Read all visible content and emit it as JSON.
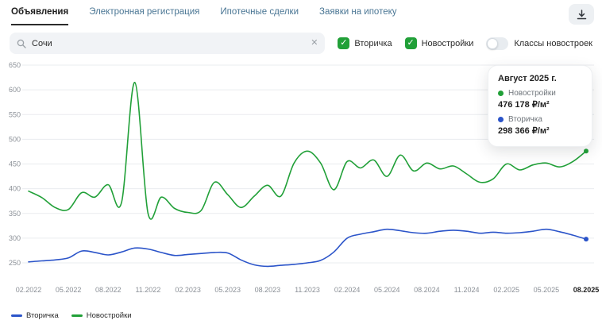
{
  "tabs": [
    {
      "label": "Объявления",
      "active": true
    },
    {
      "label": "Электронная регистрация",
      "active": false
    },
    {
      "label": "Ипотечные сделки",
      "active": false
    },
    {
      "label": "Заявки на ипотеку",
      "active": false
    }
  ],
  "search": {
    "value": "Сочи"
  },
  "filters": {
    "checkboxes": [
      {
        "label": "Вторичка",
        "checked": true
      },
      {
        "label": "Новостройки",
        "checked": true
      }
    ],
    "toggle": {
      "label": "Классы новостроек",
      "on": false
    }
  },
  "tooltip": {
    "title": "Август 2025 г.",
    "items": [
      {
        "label": "Новостройки",
        "value": "476 178 ₽/м²",
        "color": "#21a038"
      },
      {
        "label": "Вторичка",
        "value": "298 366 ₽/м²",
        "color": "#2b54c9"
      }
    ]
  },
  "legend": [
    {
      "label": "Вторичка",
      "color": "#2b54c9"
    },
    {
      "label": "Новостройки",
      "color": "#21a038"
    }
  ],
  "colors": {
    "accent_green": "#21a038",
    "line_blue": "#2b54c9",
    "tab_inactive": "#4a7694",
    "grid": "#eaecef",
    "axis_text": "#8b9097"
  },
  "chart_data": {
    "type": "line",
    "title": "",
    "xlabel": "",
    "ylabel": "",
    "ylim": [
      250,
      650
    ],
    "y_ticks": [
      250,
      300,
      350,
      400,
      450,
      500,
      550,
      600,
      650
    ],
    "grid": "horizontal",
    "legend_position": "bottom-left",
    "x": [
      "02.2022",
      "03.2022",
      "04.2022",
      "05.2022",
      "06.2022",
      "07.2022",
      "08.2022",
      "09.2022",
      "10.2022",
      "11.2022",
      "12.2022",
      "01.2023",
      "02.2023",
      "03.2023",
      "04.2023",
      "05.2023",
      "06.2023",
      "07.2023",
      "08.2023",
      "09.2023",
      "10.2023",
      "11.2023",
      "12.2023",
      "01.2024",
      "02.2024",
      "03.2024",
      "04.2024",
      "05.2024",
      "06.2024",
      "07.2024",
      "08.2024",
      "09.2024",
      "10.2024",
      "11.2024",
      "12.2024",
      "01.2025",
      "02.2025",
      "03.2025",
      "04.2025",
      "05.2025",
      "06.2025",
      "07.2025",
      "08.2025"
    ],
    "x_tick_labels": [
      "02.2022",
      "05.2022",
      "08.2022",
      "11.2022",
      "02.2023",
      "05.2023",
      "08.2023",
      "11.2023",
      "02.2024",
      "05.2024",
      "08.2024",
      "11.2024",
      "02.2025",
      "05.2025",
      "08.2025"
    ],
    "series": [
      {
        "name": "Вторичка",
        "color": "#2b54c9",
        "values": [
          252,
          254,
          256,
          260,
          274,
          271,
          266,
          272,
          280,
          278,
          271,
          265,
          267,
          269,
          271,
          270,
          256,
          246,
          243,
          245,
          247,
          250,
          255,
          272,
          300,
          308,
          313,
          318,
          315,
          311,
          310,
          314,
          316,
          314,
          310,
          312,
          310,
          311,
          314,
          318,
          313,
          306,
          298
        ]
      },
      {
        "name": "Новостройки",
        "color": "#21a038",
        "values": [
          395,
          382,
          362,
          358,
          392,
          383,
          408,
          372,
          615,
          350,
          383,
          360,
          352,
          356,
          413,
          388,
          362,
          385,
          407,
          385,
          452,
          476,
          452,
          398,
          455,
          442,
          458,
          425,
          468,
          436,
          452,
          440,
          446,
          430,
          413,
          420,
          450,
          438,
          448,
          452,
          444,
          455,
          476
        ]
      }
    ]
  }
}
